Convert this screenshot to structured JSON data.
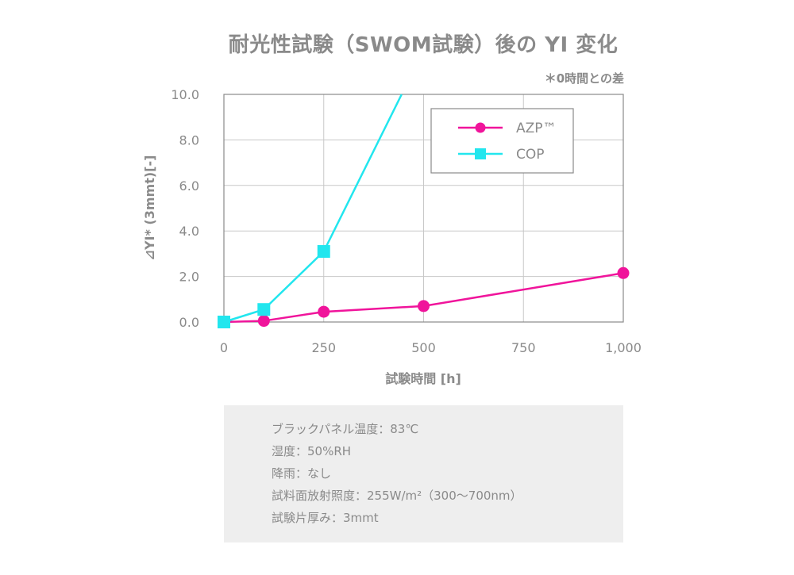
{
  "title": "耐光性試験（SWOM試験）後の YI 変化",
  "note": "＊0時間との差",
  "conditions": [
    "ブラックパネル温度：83℃",
    "湿度：50%RH",
    "降雨：なし",
    "試料面放射照度：255W/m²（300〜700nm）",
    "試験片厚み：3mmt"
  ],
  "chart_data": {
    "type": "line",
    "title": "耐光性試験（SWOM試験）後の YI 変化",
    "xlabel": "試験時間 [h]",
    "ylabel": "⊿YI* (3mmt)[-]",
    "xlim": [
      0,
      1000
    ],
    "ylim": [
      0,
      10
    ],
    "xticks": [
      0,
      250,
      500,
      750,
      1000
    ],
    "xtick_labels": [
      "0",
      "250",
      "500",
      "750",
      "1,000"
    ],
    "yticks": [
      0,
      2,
      4,
      6,
      8,
      10
    ],
    "ytick_labels": [
      "0.0",
      "2.0",
      "4.0",
      "6.0",
      "8.0",
      "10.0"
    ],
    "grid": true,
    "legend": "top-right",
    "series": [
      {
        "name": "AZP™",
        "color": "#f0149b",
        "marker": "circle",
        "points": [
          [
            0,
            0.0
          ],
          [
            100,
            0.05
          ],
          [
            250,
            0.45
          ],
          [
            500,
            0.7
          ],
          [
            1000,
            2.15
          ]
        ]
      },
      {
        "name": "COP",
        "color": "#22e6ee",
        "marker": "square",
        "points": [
          [
            0,
            0.0
          ],
          [
            100,
            0.55
          ],
          [
            250,
            3.1
          ],
          [
            445,
            10.0
          ]
        ],
        "marker_count": 3
      }
    ]
  }
}
